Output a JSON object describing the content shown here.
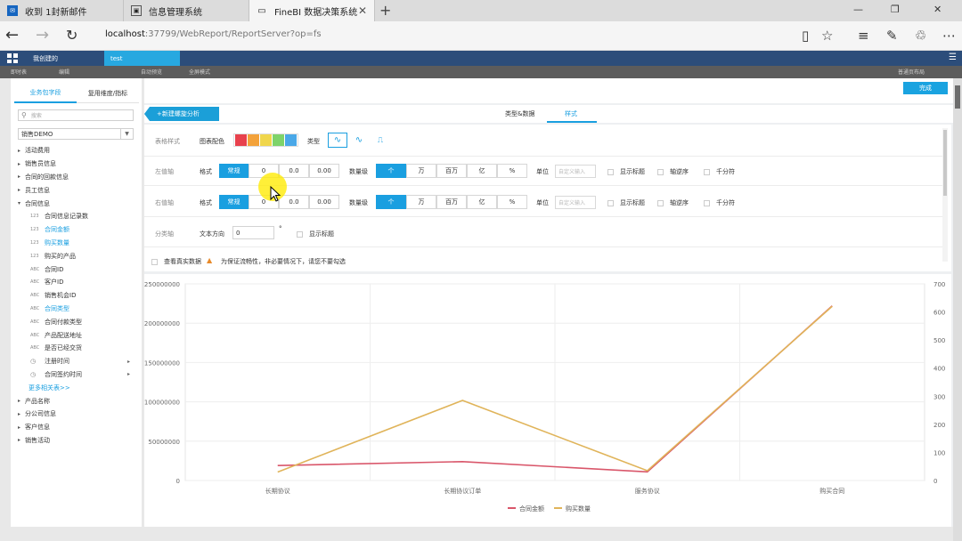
{
  "browser": {
    "tabs": [
      {
        "label": "收到 1封新邮件",
        "icon": "mail-icon"
      },
      {
        "label": "信息管理系统",
        "icon": "image-icon"
      },
      {
        "label": "FineBI 数据决策系统",
        "icon": "page-icon",
        "active": true
      }
    ],
    "url_host": "localhost",
    "url_rest": ":37799/WebReport/ReportServer?op=fs"
  },
  "app": {
    "nav": {
      "my_created": "我创建的",
      "current_tab": "test"
    },
    "subbar": [
      "即时表",
      "编辑",
      "自动预览",
      "全屏模式",
      "普通页布局"
    ]
  },
  "left_panel": {
    "tabs": [
      "业务包字段",
      "复用维度/指标"
    ],
    "search_placeholder": "搜索",
    "package": "销售DEMO",
    "tree": [
      {
        "label": "活动费用",
        "type": "folder"
      },
      {
        "label": "销售员信息",
        "type": "folder"
      },
      {
        "label": "合同的回款信息",
        "type": "folder"
      },
      {
        "label": "员工信息",
        "type": "folder"
      },
      {
        "label": "合同信息",
        "type": "folder-open"
      },
      {
        "label": "合同信息记录数",
        "type": "123"
      },
      {
        "label": "合同金额",
        "type": "123",
        "selected": true
      },
      {
        "label": "购买数量",
        "type": "123",
        "selected": true
      },
      {
        "label": "购买的产品",
        "type": "123"
      },
      {
        "label": "合同ID",
        "type": "ABC"
      },
      {
        "label": "客户ID",
        "type": "ABC"
      },
      {
        "label": "销售机会ID",
        "type": "ABC"
      },
      {
        "label": "合同类型",
        "type": "ABC",
        "selected": true
      },
      {
        "label": "合同付款类型",
        "type": "ABC"
      },
      {
        "label": "产品配送地址",
        "type": "ABC"
      },
      {
        "label": "是否已经交货",
        "type": "ABC"
      },
      {
        "label": "注册时间",
        "type": "time",
        "expand": true
      },
      {
        "label": "合同签约时间",
        "type": "time",
        "expand": true
      },
      {
        "label": "更多相关表>>",
        "type": "more"
      },
      {
        "label": "产品名称",
        "type": "folder"
      },
      {
        "label": "分公司信息",
        "type": "folder"
      },
      {
        "label": "客户信息",
        "type": "folder"
      },
      {
        "label": "销售活动",
        "type": "folder"
      }
    ]
  },
  "main": {
    "done_button": "完成",
    "new_button": "+新建螺旋分析",
    "style_tabs": [
      "类型&数据",
      "样式"
    ],
    "chart_style": {
      "label": "表格样式",
      "color_label": "图表配色",
      "palette": [
        "#e8414d",
        "#f3a23a",
        "#f0d64c",
        "#7ed36a",
        "#4aa8e8"
      ],
      "type_label": "类型",
      "types": [
        "∿",
        "∿",
        "⎍"
      ]
    },
    "left_axis": {
      "label": "左值轴",
      "format_label": "格式",
      "format_options": [
        "常规",
        "0",
        "0.0",
        "0.00"
      ],
      "magnitude_label": "数量级",
      "magnitudes": [
        "个",
        "万",
        "百万",
        "亿",
        "%"
      ],
      "unit_label": "单位",
      "unit_placeholder": "自定义输入",
      "checks": [
        "显示标题",
        "轴逆序",
        "千分符"
      ]
    },
    "right_axis": {
      "label": "右值轴",
      "format_label": "格式",
      "format_options": [
        "常规",
        "0",
        "0.0",
        "0.00"
      ],
      "magnitude_label": "数量级",
      "magnitudes": [
        "个",
        "万",
        "百万",
        "亿",
        "%"
      ],
      "unit_label": "单位",
      "unit_placeholder": "自定义输入",
      "checks": [
        "显示标题",
        "轴逆序",
        "千分符"
      ]
    },
    "category_axis": {
      "label": "分类轴",
      "dir_label": "文本方向",
      "dir_value": "0",
      "degree": "°",
      "check": "显示标题"
    },
    "realdata": {
      "check": "查看真实数据",
      "warning": "为保证流畅性，非必要情况下，请您不要勾选"
    }
  },
  "chart_data": {
    "type": "line",
    "categories": [
      "长期协议",
      "长期协议订单",
      "服务协议",
      "购买合同"
    ],
    "series": [
      {
        "name": "合同金额",
        "axis": "left",
        "color": "#d9566a",
        "values": [
          19000000,
          24000000,
          11000000,
          222000000
        ]
      },
      {
        "name": "购买数量",
        "axis": "right",
        "color": "#e0b45a",
        "values": [
          30,
          285,
          35,
          620
        ]
      }
    ],
    "left_ticks": [
      "250000000",
      "200000000",
      "150000000",
      "100000000",
      "50000000",
      "0"
    ],
    "right_ticks": [
      "700",
      "600",
      "500",
      "400",
      "300",
      "200",
      "100",
      "0"
    ],
    "ylim_left": [
      0,
      250000000
    ],
    "ylim_right": [
      0,
      700
    ],
    "legend": "bottom-center",
    "grid": true
  }
}
